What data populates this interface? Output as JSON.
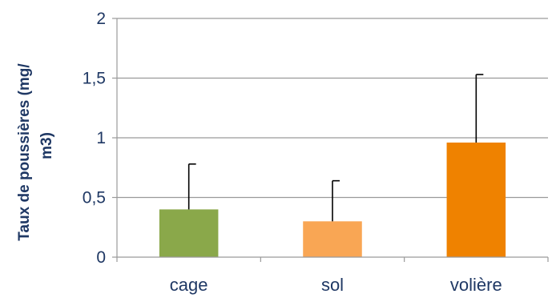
{
  "chart_data": {
    "type": "bar",
    "title": "",
    "xlabel": "",
    "ylabel_lines": [
      "Taux de poussières (mg/",
      "m3)"
    ],
    "categories": [
      "cage",
      "sol",
      "volière"
    ],
    "values": [
      0.4,
      0.3,
      0.96
    ],
    "error_upper": [
      0.78,
      0.64,
      1.53
    ],
    "colors": [
      "#8aa84a",
      "#f9a654",
      "#ef8200"
    ],
    "ylim": [
      0,
      2
    ],
    "yticks": [
      0,
      0.5,
      1,
      1.5,
      2
    ],
    "ytick_labels": [
      "0",
      "0,5",
      "1",
      "1,5",
      "2"
    ],
    "grid": true,
    "legend": "none"
  }
}
